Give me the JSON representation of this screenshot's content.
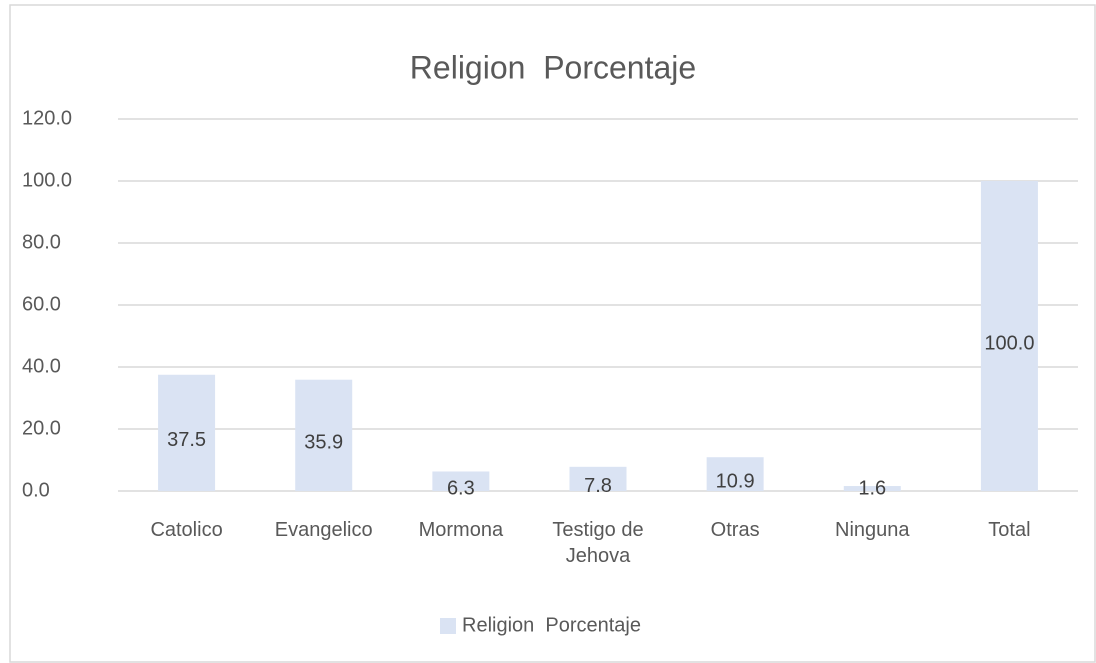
{
  "chart_data": {
    "type": "bar",
    "title": "Religion  Porcentaje",
    "categories": [
      "Catolico",
      "Evangelico",
      "Mormona",
      "Testigo de Jehova",
      "Otras",
      "Ninguna",
      "Total"
    ],
    "series": [
      {
        "name": "Religion  Porcentaje",
        "color": "#dae3f3",
        "values": [
          37.5,
          35.9,
          6.3,
          7.8,
          10.9,
          1.6,
          100.0
        ],
        "value_labels": [
          "37.5",
          "35.9",
          "6.3",
          "7.8",
          "10.9",
          "1.6",
          "100.0"
        ]
      }
    ],
    "ylim": [
      0,
      120
    ],
    "yticks": [
      {
        "value": 0,
        "label": "0.0"
      },
      {
        "value": 20,
        "label": "20.0"
      },
      {
        "value": 40,
        "label": "40.0"
      },
      {
        "value": 60,
        "label": "60.0"
      },
      {
        "value": 80,
        "label": "80.0"
      },
      {
        "value": 100,
        "label": "100.0"
      },
      {
        "value": 120,
        "label": "120.0"
      }
    ],
    "grid": true,
    "legend": "bottom"
  }
}
